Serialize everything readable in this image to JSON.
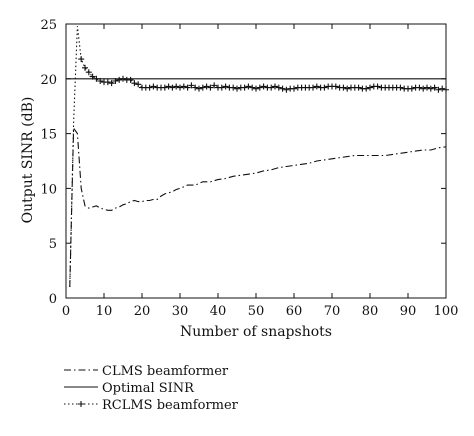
{
  "chart_data": {
    "type": "line",
    "xlabel": "Number of snapshots",
    "ylabel": "Output SINR (dB)",
    "xlim": [
      0,
      100
    ],
    "ylim": [
      0,
      25
    ],
    "xticks": [
      0,
      10,
      20,
      30,
      40,
      50,
      60,
      70,
      80,
      90,
      100
    ],
    "yticks": [
      0,
      5,
      10,
      15,
      20,
      25
    ],
    "grid": false,
    "legend_position": "bottom-left (below plot)",
    "series": [
      {
        "name": "CLMS beamformer",
        "line_style": "dash-dot",
        "marker": "none",
        "x": [
          1,
          2,
          3,
          4,
          5,
          6,
          7,
          8,
          9,
          10,
          11,
          12,
          13,
          14,
          15,
          16,
          17,
          18,
          19,
          20,
          21,
          22,
          23,
          24,
          25,
          26,
          27,
          28,
          29,
          30,
          32,
          34,
          36,
          38,
          40,
          42,
          44,
          46,
          48,
          50,
          52,
          54,
          56,
          58,
          60,
          62,
          64,
          66,
          68,
          70,
          72,
          74,
          76,
          78,
          80,
          82,
          84,
          86,
          88,
          90,
          92,
          94,
          96,
          98,
          100
        ],
        "y": [
          1.0,
          15.5,
          15.0,
          10.0,
          8.4,
          8.2,
          8.3,
          8.4,
          8.2,
          8.1,
          8.0,
          8.0,
          8.2,
          8.3,
          8.5,
          8.6,
          8.8,
          8.9,
          8.8,
          8.8,
          8.9,
          8.9,
          9.0,
          9.0,
          9.3,
          9.5,
          9.6,
          9.7,
          9.9,
          10.0,
          10.3,
          10.3,
          10.6,
          10.6,
          10.8,
          10.9,
          11.1,
          11.2,
          11.3,
          11.4,
          11.6,
          11.7,
          11.9,
          12.0,
          12.1,
          12.2,
          12.3,
          12.5,
          12.6,
          12.7,
          12.8,
          12.9,
          13.0,
          13.0,
          13.0,
          13.0,
          13.0,
          13.1,
          13.2,
          13.3,
          13.4,
          13.5,
          13.5,
          13.7,
          13.8
        ]
      },
      {
        "name": "Optimal SINR",
        "line_style": "solid",
        "marker": "none",
        "x": [
          0,
          100
        ],
        "y": [
          20,
          20
        ]
      },
      {
        "name": "RCLMS beamformer",
        "line_style": "dotted",
        "marker": "plus",
        "x": [
          1,
          2,
          3,
          4,
          5,
          6,
          7,
          8,
          9,
          10,
          11,
          12,
          13,
          14,
          15,
          16,
          17,
          18,
          19,
          20,
          21,
          22,
          23,
          24,
          25,
          26,
          27,
          28,
          29,
          30,
          31,
          32,
          33,
          34,
          35,
          36,
          37,
          38,
          39,
          40,
          41,
          42,
          43,
          44,
          45,
          46,
          47,
          48,
          49,
          50,
          51,
          52,
          53,
          54,
          55,
          56,
          57,
          58,
          59,
          60,
          61,
          62,
          63,
          64,
          65,
          66,
          67,
          68,
          69,
          70,
          71,
          72,
          73,
          74,
          75,
          76,
          77,
          78,
          79,
          80,
          81,
          82,
          83,
          84,
          85,
          86,
          87,
          88,
          89,
          90,
          91,
          92,
          93,
          94,
          95,
          96,
          97,
          98,
          99,
          100
        ],
        "y": [
          1.0,
          16.0,
          24.8,
          21.8,
          21.0,
          20.6,
          20.2,
          20.0,
          19.8,
          19.7,
          19.7,
          19.6,
          19.8,
          19.9,
          20.0,
          19.9,
          19.9,
          19.6,
          19.5,
          19.2,
          19.2,
          19.2,
          19.3,
          19.2,
          19.2,
          19.2,
          19.3,
          19.2,
          19.3,
          19.2,
          19.3,
          19.2,
          19.4,
          19.2,
          19.1,
          19.2,
          19.3,
          19.2,
          19.4,
          19.2,
          19.2,
          19.3,
          19.2,
          19.2,
          19.1,
          19.2,
          19.2,
          19.3,
          19.2,
          19.1,
          19.2,
          19.3,
          19.2,
          19.2,
          19.3,
          19.2,
          19.1,
          19.0,
          19.1,
          19.1,
          19.2,
          19.2,
          19.2,
          19.2,
          19.2,
          19.3,
          19.2,
          19.2,
          19.3,
          19.3,
          19.3,
          19.2,
          19.2,
          19.1,
          19.2,
          19.2,
          19.2,
          19.1,
          19.1,
          19.2,
          19.3,
          19.3,
          19.2,
          19.2,
          19.2,
          19.2,
          19.2,
          19.2,
          19.1,
          19.1,
          19.1,
          19.2,
          19.2,
          19.1,
          19.2,
          19.1,
          19.2,
          19.0,
          19.1,
          19.0
        ]
      }
    ]
  }
}
